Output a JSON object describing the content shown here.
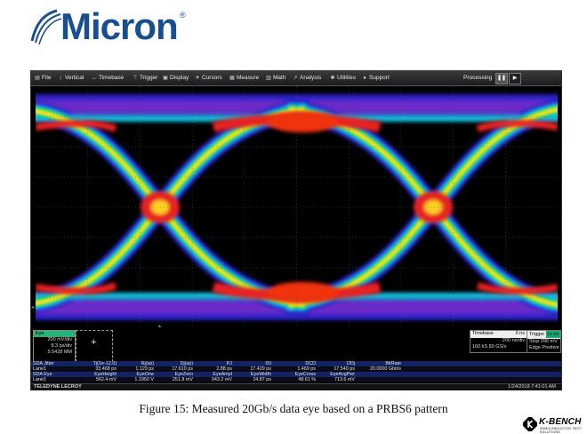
{
  "brand": {
    "logo_text": "Micron",
    "reg_mark": "®"
  },
  "menu": {
    "items": [
      {
        "label": "File",
        "icon": "file-icon"
      },
      {
        "label": "Vertical",
        "icon": "vertical-icon"
      },
      {
        "label": "Timebase",
        "icon": "timebase-icon"
      },
      {
        "label": "Trigger",
        "icon": "trigger-icon"
      },
      {
        "label": "Display",
        "icon": "display-icon"
      },
      {
        "label": "Cursors",
        "icon": "cursors-icon"
      },
      {
        "label": "Measure",
        "icon": "measure-icon"
      },
      {
        "label": "Math",
        "icon": "math-icon"
      },
      {
        "label": "Analysis",
        "icon": "analysis-icon"
      },
      {
        "label": "Utilities",
        "icon": "utilities-icon"
      },
      {
        "label": "Support",
        "icon": "support-icon"
      }
    ],
    "status": "Processing",
    "pause_icon": "pause-icon",
    "play_icon": "play-icon"
  },
  "eye_panel": {
    "title": "Eye",
    "line1": "200 mV/div",
    "line2": "8.3 ps/div",
    "line3": "5.5428 MM"
  },
  "timebase": {
    "label": "Timebase",
    "offset": "0 ns",
    "line1": "200 ns/div",
    "line2": "160 kS   80 GS/s"
  },
  "trigger": {
    "label": "Trigger",
    "badge": "C1 DC",
    "line1": "Stop   296 mV",
    "line2": "Edge   Positive"
  },
  "measurements": {
    "row1_header": {
      "name": "SDA Jitter",
      "cols": [
        "Tj(1e-12.0)",
        "Rj(sp)",
        "Dj(sp)",
        "PJ",
        "ISI",
        "DCD",
        "DDj",
        "BitRate"
      ]
    },
    "row1_values": {
      "name": "Lane1",
      "cols": [
        "33.468 ps",
        "1.129 ps",
        "17.610 ps",
        "2.88 ps",
        "17.429 ps",
        "1.469 ps",
        "17.540 ps",
        "20.0000 Gbit/s"
      ]
    },
    "row2_header": {
      "name": "SDA Eye",
      "cols": [
        "EyeHeight",
        "EyeOne",
        "EyeZero",
        "EyeAmpl",
        "EyeWidth",
        "EyeCross",
        "EyeAvgPwr"
      ]
    },
    "row2_values": {
      "name": "Lane1",
      "cols": [
        "562.4 mV",
        "1.1950 V",
        "251.8 mV",
        "943.2 mV",
        "24.87 ps",
        "48.61 %",
        "713.6 mV"
      ]
    }
  },
  "footer": {
    "brand": "TELEDYNE LECROY",
    "timestamp": "1/24/2018 7:41:01 AM"
  },
  "caption": "Figure 15: Measured 20Gb/s data eye based on a PRBS6 pattern",
  "watermark": {
    "name": "K-BENCH",
    "tagline": "SEMICONDUCTOR TEST SOLUTIONS"
  }
}
